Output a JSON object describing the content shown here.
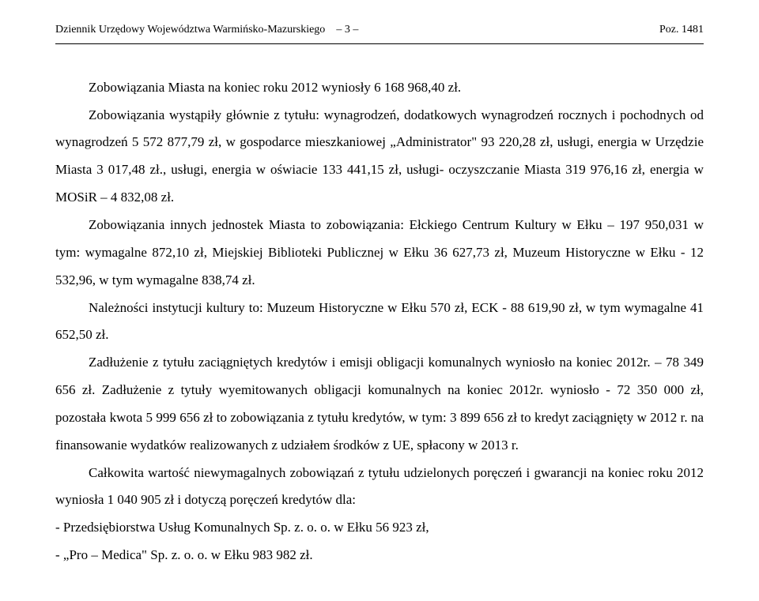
{
  "header": {
    "left": "Dziennik Urzędowy Województwa Warmińsko-Mazurskiego",
    "page": "– 3 –",
    "right": "Poz. 1481"
  },
  "paragraphs": {
    "p1": "Zobowiązania Miasta na koniec roku 2012 wyniosły 6 168 968,40 zł.",
    "p2": "Zobowiązania wystąpiły głównie z tytułu: wynagrodzeń, dodatkowych wynagrodzeń rocznych i pochodnych od wynagrodzeń 5 572 877,79 zł, w gospodarce mieszkaniowej „Administrator\" 93 220,28 zł, usługi, energia w Urzędzie Miasta 3 017,48 zł., usługi, energia w oświacie 133 441,15 zł, usługi- oczyszczanie Miasta 319 976,16 zł, energia w MOSiR – 4 832,08 zł.",
    "p3": "Zobowiązania innych jednostek Miasta to zobowiązania: Ełckiego Centrum Kultury w Ełku – 197 950,031 w tym: wymagalne 872,10 zł, Miejskiej Biblioteki Publicznej w Ełku 36 627,73 zł, Muzeum Historyczne w Ełku - 12 532,96, w tym wymagalne 838,74 zł.",
    "p4": "Należności instytucji kultury to: Muzeum Historyczne w Ełku 570 zł, ECK - 88 619,90 zł, w tym wymagalne 41 652,50 zł.",
    "p5": "Zadłużenie z tytułu zaciągniętych kredytów i emisji obligacji komunalnych wyniosło na koniec 2012r. – 78 349 656 zł. Zadłużenie z tytuły wyemitowanych obligacji komunalnych na koniec 2012r. wyniosło - 72 350 000 zł, pozostała kwota 5 999 656 zł to zobowiązania z tytułu kredytów, w tym: 3 899 656 zł to kredyt zaciągnięty w 2012 r. na finansowanie wydatków realizowanych z udziałem środków z UE, spłacony w 2013 r.",
    "p6": "Całkowita wartość niewymagalnych zobowiązań z tytułu udzielonych poręczeń i gwarancji na koniec roku 2012 wyniosła 1 040 905 zł i dotyczą poręczeń kredytów dla:",
    "l1": "- Przedsiębiorstwa Usług Komunalnych Sp. z. o. o. w Ełku   56 923 zł,",
    "l2": "- „Pro – Medica\" Sp. z. o. o. w Ełku 983 982 zł."
  }
}
